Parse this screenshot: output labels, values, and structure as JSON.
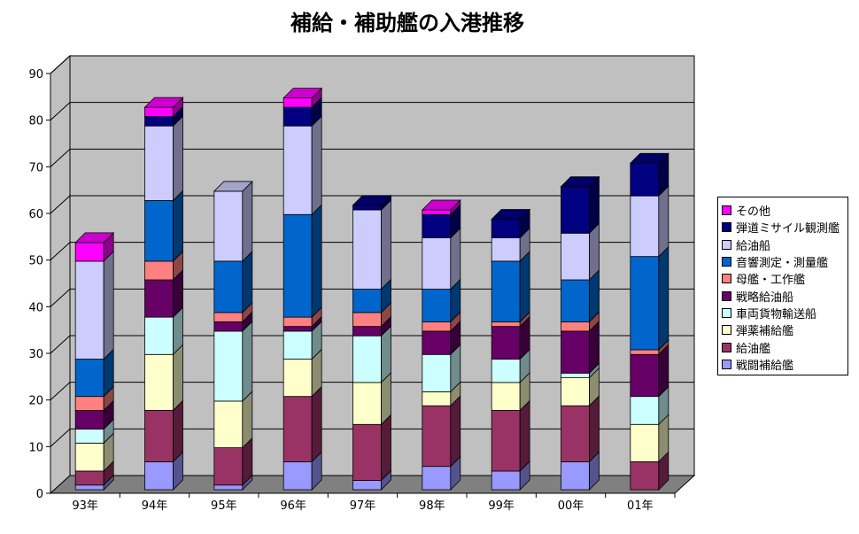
{
  "chart_data": {
    "type": "bar",
    "stacked": true,
    "three_d": true,
    "title": "補給・補助艦の入港推移",
    "categories": [
      "93年",
      "94年",
      "95年",
      "96年",
      "97年",
      "98年",
      "99年",
      "00年",
      "01年"
    ],
    "ylim": [
      0,
      90
    ],
    "yticks": [
      "0",
      "10",
      "20",
      "30",
      "40",
      "50",
      "60",
      "70",
      "80",
      "90"
    ],
    "grid": true,
    "legend_position": "right",
    "series": [
      {
        "name": "戦闘補給艦",
        "color": "#9999FF",
        "values": [
          1,
          6,
          1,
          6,
          2,
          5,
          4,
          6,
          0
        ]
      },
      {
        "name": "給油艦",
        "color": "#993366",
        "values": [
          3,
          11,
          8,
          14,
          12,
          13,
          13,
          12,
          6
        ]
      },
      {
        "name": "弾薬補給艦",
        "color": "#FFFFCC",
        "values": [
          6,
          12,
          10,
          8,
          9,
          3,
          6,
          6,
          8
        ]
      },
      {
        "name": "車両貨物輸送船",
        "color": "#CCFFFF",
        "values": [
          3,
          8,
          15,
          6,
          10,
          8,
          5,
          1,
          6
        ]
      },
      {
        "name": "戦略給油船",
        "color": "#660066",
        "values": [
          4,
          8,
          2,
          1,
          2,
          5,
          7,
          9,
          9
        ]
      },
      {
        "name": "母艦・工作艦",
        "color": "#FF8080",
        "values": [
          3,
          4,
          2,
          2,
          3,
          2,
          1,
          2,
          1
        ]
      },
      {
        "name": "音響測定・測量艦",
        "color": "#0066CC",
        "values": [
          8,
          13,
          11,
          22,
          5,
          7,
          13,
          9,
          20
        ]
      },
      {
        "name": "給油船",
        "color": "#CCCCFF",
        "values": [
          21,
          16,
          15,
          19,
          17,
          11,
          5,
          10,
          13
        ]
      },
      {
        "name": "弾道ミサイル観測艦",
        "color": "#000080",
        "values": [
          0,
          2,
          0,
          4,
          1,
          5,
          4,
          10,
          7
        ]
      },
      {
        "name": "その他",
        "color": "#FF00FF",
        "values": [
          4,
          2,
          0,
          2,
          0,
          1,
          0,
          0,
          0
        ]
      }
    ],
    "legend_order": [
      "その他",
      "弾道ミサイル観測艦",
      "給油船",
      "音響測定・測量艦",
      "母艦・工作艦",
      "戦略給油船",
      "車両貨物輸送船",
      "弾薬補給艦",
      "給油艦",
      "戦闘補給艦"
    ]
  },
  "colors": {
    "plot_wall": "#C0C0C0",
    "floor": "#808080",
    "gridline": "#000000"
  }
}
